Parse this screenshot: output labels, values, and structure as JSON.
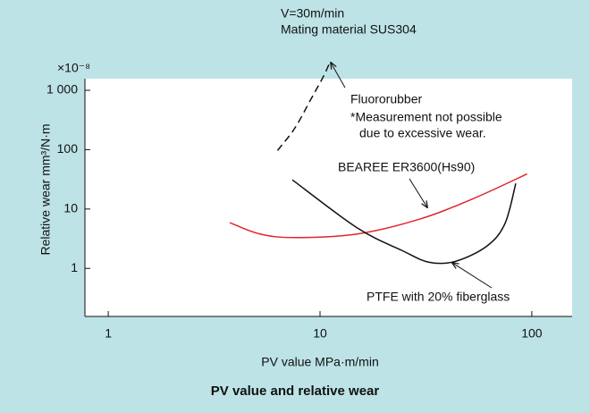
{
  "chart_data": {
    "type": "line",
    "title": "PV value and relative wear",
    "x_label": "PV value   MPa·m/min",
    "y_label": "Relative wear    mm³/N·m",
    "y_multiplier": "×10⁻⁸",
    "annotations": [
      "V=30m/min",
      "Mating material SUS304",
      "Fluororubber",
      "*Measurement not possible",
      "due to excessive wear.",
      "BEAREE ER3600(Hs90)",
      "PTFE with 20% fiberglass"
    ],
    "log_x": true,
    "log_y": true,
    "xlim": [
      0.776,
      155
    ],
    "ylim": [
      0.155,
      1570
    ],
    "xticks": [
      1,
      10,
      100
    ],
    "yticks": [
      1,
      10,
      100,
      {
        "value": 1000,
        "label": "1 000"
      }
    ],
    "series": [
      {
        "name": "Fluororubber",
        "color": "#111111",
        "dashed": true,
        "x": [
          6.3,
          7.6,
          9.1,
          10.4,
          11.2
        ],
        "values": [
          97,
          230,
          730,
          1740,
          3130
        ]
      },
      {
        "name": "BEAREE ER3600(Hs90)",
        "color": "#e0262a",
        "dashed": false,
        "x": [
          3.75,
          5.2,
          7.6,
          15,
          29.7,
          53,
          95
        ],
        "values": [
          5.9,
          3.8,
          3.3,
          3.8,
          6.8,
          15,
          39
        ]
      },
      {
        "name": "PTFE with 20% fiberglass",
        "color": "#111111",
        "dashed": false,
        "x": [
          7.4,
          15,
          24.4,
          32.7,
          43.8,
          61.6,
          74.7,
          84
        ],
        "values": [
          31,
          4.8,
          2.0,
          1.27,
          1.32,
          2.4,
          5.7,
          27
        ]
      }
    ]
  }
}
